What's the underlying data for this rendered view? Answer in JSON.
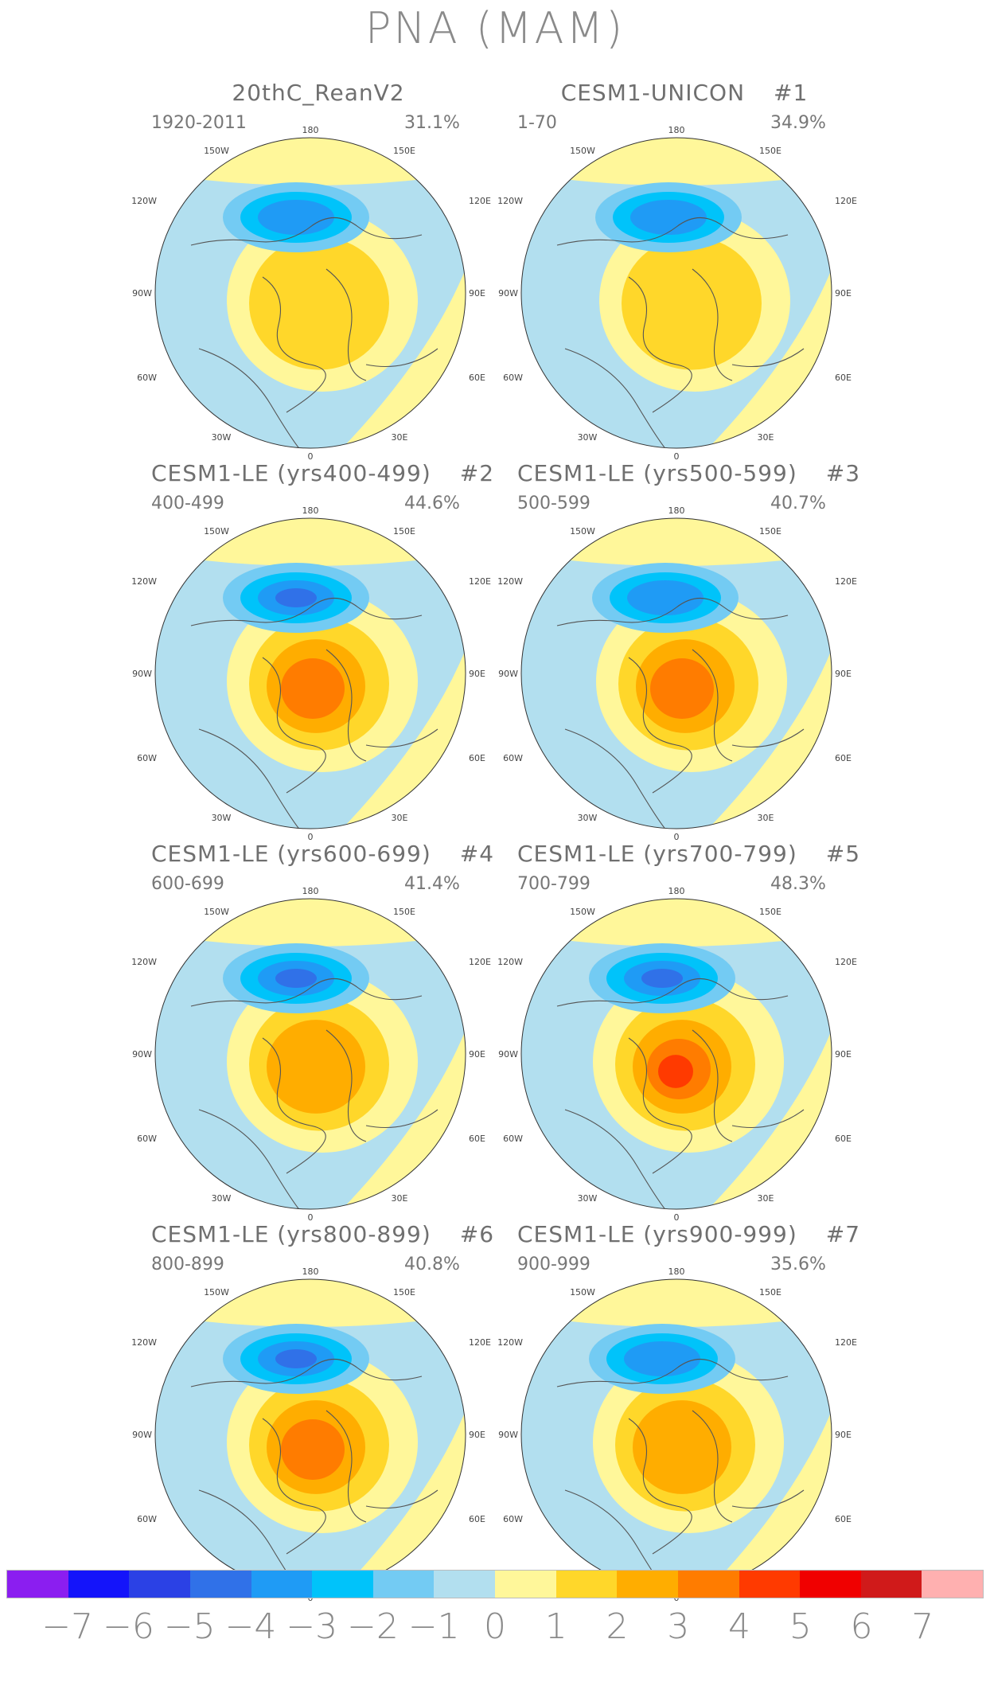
{
  "title": "PNA (MAM)",
  "lon_labels": [
    "180",
    "150W",
    "150E",
    "120W",
    "120E",
    "90W",
    "90E",
    "60W",
    "60E",
    "30W",
    "30E",
    "0"
  ],
  "panels": [
    {
      "name": "20thC_ReanV2",
      "run": "",
      "period": "1920-2011",
      "variance": "31.1%"
    },
    {
      "name": "CESM1-UNICON",
      "run": "#1",
      "period": "1-70",
      "variance": "34.9%"
    },
    {
      "name": "CESM1-LE (yrs400-499)",
      "run": "#2",
      "period": "400-499",
      "variance": "44.6%"
    },
    {
      "name": "CESM1-LE (yrs500-599)",
      "run": "#3",
      "period": "500-599",
      "variance": "40.7%"
    },
    {
      "name": "CESM1-LE (yrs600-699)",
      "run": "#4",
      "period": "600-699",
      "variance": "41.4%"
    },
    {
      "name": "CESM1-LE (yrs700-799)",
      "run": "#5",
      "period": "700-799",
      "variance": "48.3%"
    },
    {
      "name": "CESM1-LE (yrs800-899)",
      "run": "#6",
      "period": "800-899",
      "variance": "40.8%"
    },
    {
      "name": "CESM1-LE (yrs900-999)",
      "run": "#7",
      "period": "900-999",
      "variance": "35.6%"
    }
  ],
  "colorbar": {
    "labels": [
      "−7",
      "−6",
      "−5",
      "−4",
      "−3",
      "−2",
      "−1",
      "0",
      "1",
      "2",
      "3",
      "4",
      "5",
      "6",
      "7"
    ],
    "colors": [
      "#8b1ef0",
      "#1414fa",
      "#2b41e5",
      "#3071e8",
      "#1f9bf5",
      "#00c3fa",
      "#73cbf3",
      "#b2dfef",
      "#fff79a",
      "#ffd72a",
      "#ffad00",
      "#ff7c00",
      "#ff3a00",
      "#f00000",
      "#d01a1a",
      "#ffb0b0"
    ]
  }
}
